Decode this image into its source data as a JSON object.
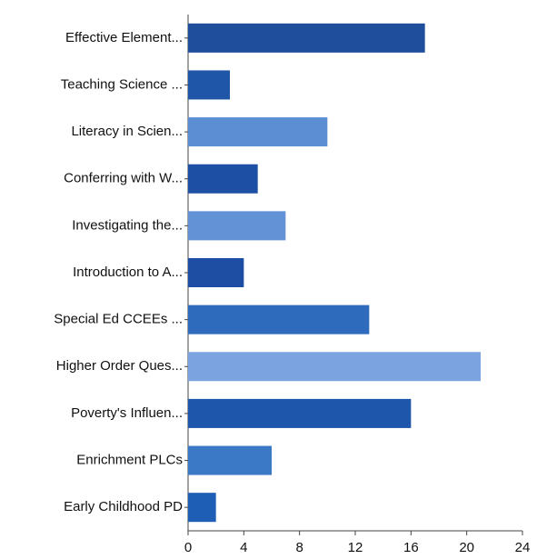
{
  "chart_data": {
    "type": "barh",
    "categories": [
      "Effective Element...",
      "Teaching Science ...",
      "Literacy in Scien...",
      "Conferring with W...",
      "Investigating the...",
      "Introduction to A...",
      "Special Ed CCEEs ...",
      "Higher Order Ques...",
      "Poverty's Influen...",
      "Enrichment PLCs",
      "Early Childhood PD"
    ],
    "values": [
      17,
      3,
      10,
      5,
      7,
      4,
      13,
      21,
      16,
      6,
      2
    ],
    "colors": [
      "#1f4e9c",
      "#1f56a8",
      "#5b8ed3",
      "#1d4fa5",
      "#6393d6",
      "#1d4ea3",
      "#2f6bbd",
      "#7aa3df",
      "#1e56ac",
      "#3b78c6",
      "#1e5fb5"
    ],
    "xlim": [
      0,
      24
    ],
    "xticks": [
      0,
      4,
      8,
      12,
      16,
      20,
      24
    ],
    "grid": false
  }
}
